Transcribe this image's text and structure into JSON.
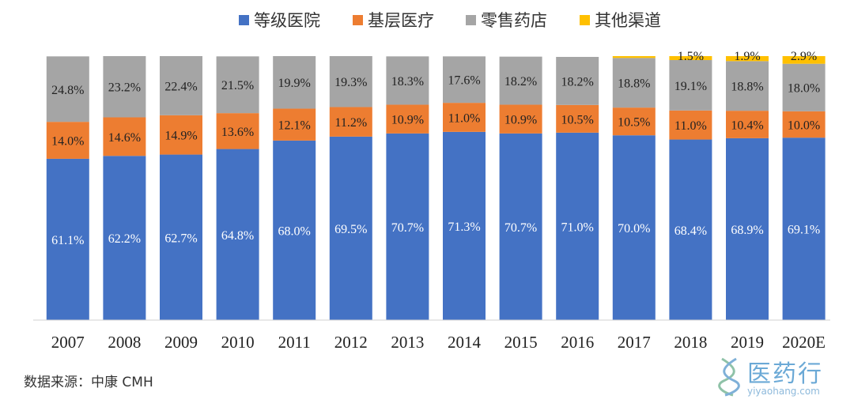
{
  "chart_data": {
    "type": "bar",
    "stacked": true,
    "normalized": true,
    "categories": [
      "2007",
      "2008",
      "2009",
      "2010",
      "2011",
      "2012",
      "2013",
      "2014",
      "2015",
      "2016",
      "2017",
      "2018",
      "2019",
      "2020E"
    ],
    "series": [
      {
        "name": "等级医院",
        "color": "#4472c4",
        "label_color": "#ffffff",
        "values": [
          61.1,
          62.2,
          62.7,
          64.8,
          68.0,
          69.5,
          70.7,
          71.3,
          70.7,
          71.0,
          70.0,
          68.4,
          68.9,
          69.1
        ],
        "labels": [
          "61.1%",
          "62.2%",
          "62.7%",
          "64.8%",
          "68.0%",
          "69.5%",
          "70.7%",
          "71.3%",
          "70.7%",
          "71.0%",
          "70.0%",
          "68.4%",
          "68.9%",
          "69.1%"
        ]
      },
      {
        "name": "基层医疗",
        "color": "#ed7d31",
        "label_color": "#222222",
        "values": [
          14.0,
          14.6,
          14.9,
          13.6,
          12.1,
          11.2,
          10.9,
          11.0,
          10.9,
          10.5,
          10.5,
          11.0,
          10.4,
          10.0
        ],
        "labels": [
          "14.0%",
          "14.6%",
          "14.9%",
          "13.6%",
          "12.1%",
          "11.2%",
          "10.9%",
          "11.0%",
          "10.9%",
          "10.5%",
          "10.5%",
          "11.0%",
          "10.4%",
          "10.0%"
        ]
      },
      {
        "name": "零售药店",
        "color": "#a5a5a5",
        "label_color": "#222222",
        "values": [
          24.8,
          23.2,
          22.4,
          21.5,
          19.9,
          19.3,
          18.3,
          17.6,
          18.2,
          18.2,
          18.8,
          19.1,
          18.8,
          18.0
        ],
        "labels": [
          "24.8%",
          "23.2%",
          "22.4%",
          "21.5%",
          "19.9%",
          "19.3%",
          "18.3%",
          "17.6%",
          "18.2%",
          "18.2%",
          "18.8%",
          "19.1%",
          "18.8%",
          "18.0%"
        ]
      },
      {
        "name": "其他渠道",
        "color": "#ffc000",
        "label_color": "#222222",
        "values": [
          0,
          0,
          0,
          0,
          0,
          0,
          0,
          0,
          0,
          0,
          0.7,
          1.5,
          1.9,
          2.9
        ],
        "labels": [
          "",
          "",
          "",
          "",
          "",
          "",
          "",
          "",
          "",
          "",
          "",
          "1.5%",
          "1.9%",
          "2.9%"
        ]
      }
    ],
    "ylim": [
      0,
      100
    ],
    "legend_position": "top-center",
    "grid": false
  },
  "source_text": "数据来源：中康 CMH",
  "watermark": {
    "text": "医药行",
    "url": "yiyaohang.com"
  }
}
